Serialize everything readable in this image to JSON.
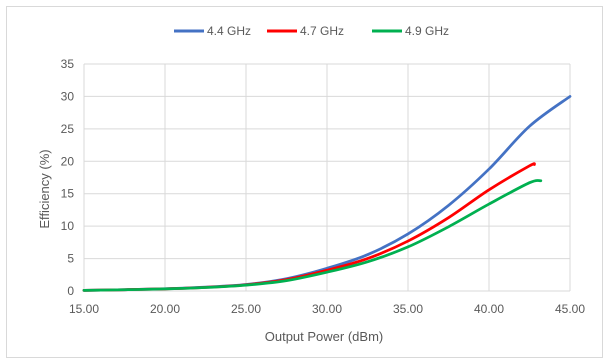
{
  "chart_data": {
    "type": "line",
    "title": "",
    "xlabel": "Output Power (dBm)",
    "ylabel": "Efficiency (%)",
    "xlim": [
      15,
      45
    ],
    "ylim": [
      0,
      35
    ],
    "x_ticks": [
      "15.00",
      "20.00",
      "25.00",
      "30.00",
      "35.00",
      "40.00",
      "45.00"
    ],
    "y_ticks": [
      "0",
      "5",
      "10",
      "15",
      "20",
      "25",
      "30",
      "35"
    ],
    "grid": "horizontal and vertical",
    "legend_position": "top",
    "series": [
      {
        "name": "4.4 GHz",
        "color": "#4472c4",
        "points": [
          [
            15,
            0.1
          ],
          [
            17.5,
            0.2
          ],
          [
            20,
            0.35
          ],
          [
            22.5,
            0.6
          ],
          [
            25,
            1.0
          ],
          [
            27.5,
            1.9
          ],
          [
            30,
            3.5
          ],
          [
            32.5,
            5.6
          ],
          [
            35,
            8.8
          ],
          [
            37.5,
            13.2
          ],
          [
            40,
            18.8
          ],
          [
            42.5,
            25.4
          ],
          [
            45,
            30.0
          ]
        ]
      },
      {
        "name": "4.7 GHz",
        "color": "#ff0000",
        "points": [
          [
            15,
            0.1
          ],
          [
            17.5,
            0.2
          ],
          [
            20,
            0.33
          ],
          [
            22.5,
            0.56
          ],
          [
            25,
            0.95
          ],
          [
            27.5,
            1.75
          ],
          [
            30,
            3.2
          ],
          [
            32.5,
            5.0
          ],
          [
            35,
            7.7
          ],
          [
            37.5,
            11.3
          ],
          [
            40,
            15.6
          ],
          [
            42.5,
            19.3
          ],
          [
            42.8,
            19.5
          ]
        ]
      },
      {
        "name": "4.9 GHz",
        "color": "#00b050",
        "points": [
          [
            15,
            0.1
          ],
          [
            17.5,
            0.2
          ],
          [
            20,
            0.32
          ],
          [
            22.5,
            0.53
          ],
          [
            25,
            0.9
          ],
          [
            27.5,
            1.6
          ],
          [
            30,
            2.9
          ],
          [
            32.5,
            4.5
          ],
          [
            35,
            6.8
          ],
          [
            37.5,
            9.9
          ],
          [
            40,
            13.4
          ],
          [
            42.5,
            16.7
          ],
          [
            43.2,
            17.0
          ]
        ]
      }
    ]
  }
}
